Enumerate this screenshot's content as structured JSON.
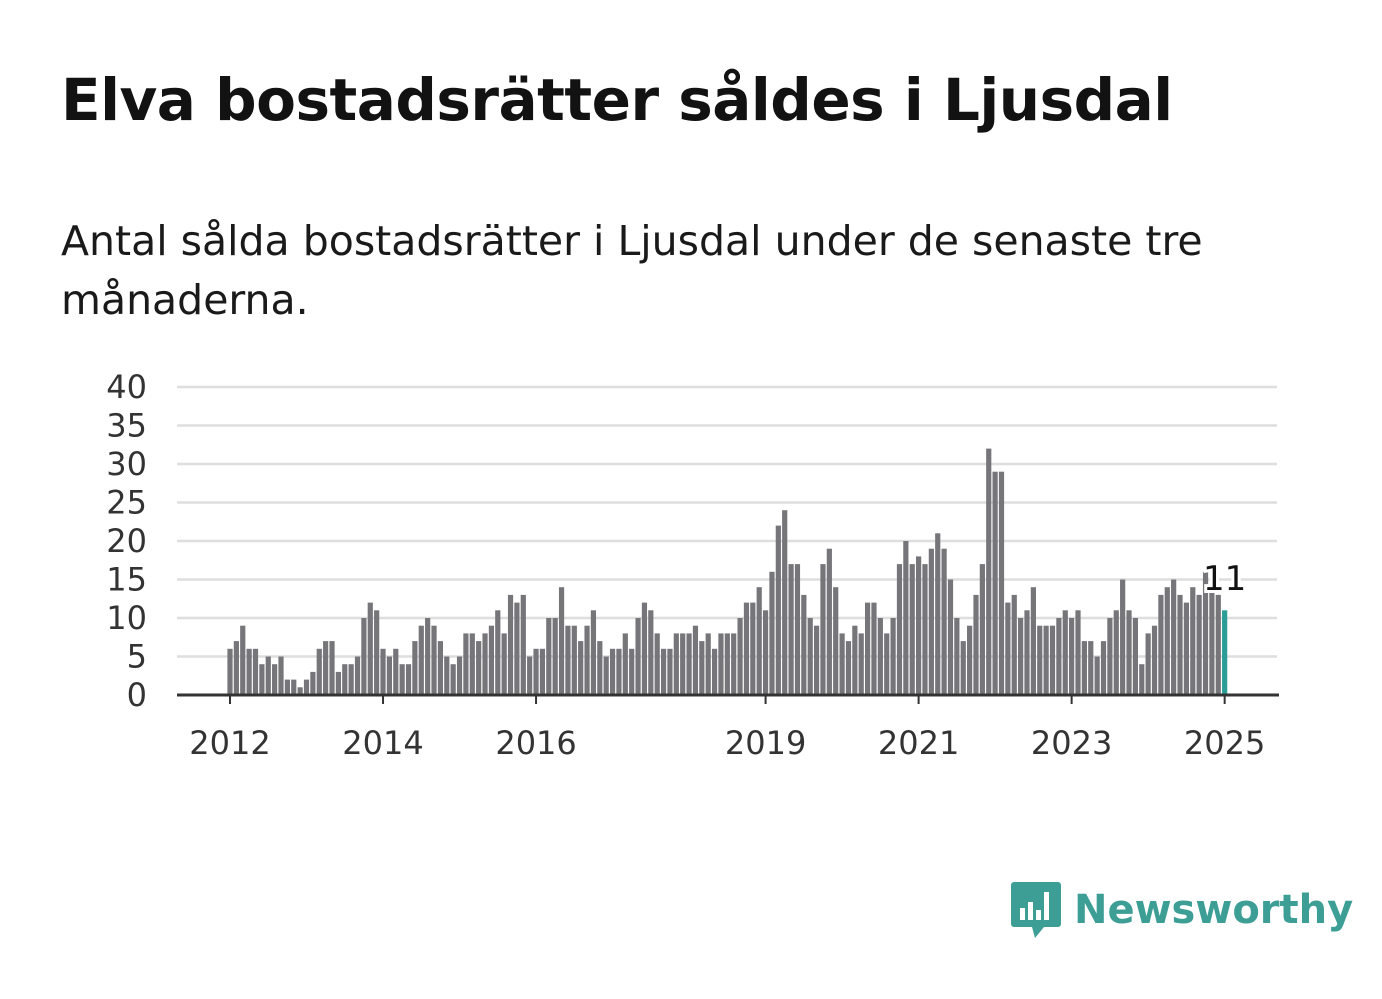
{
  "title": "Elva bostadsrätter såldes i Ljusdal",
  "subtitle": "Antal sålda bostadsrätter i Ljusdal under de senaste tre månaderna.",
  "brand": {
    "name": "Newsworthy",
    "icon": "newsworthy-logo-icon",
    "color": "#3d9e96"
  },
  "chart_data": {
    "type": "bar",
    "x_start": "2012-01",
    "x_end": "2025-01",
    "ylim": [
      0,
      40
    ],
    "y_ticks": [
      0,
      5,
      10,
      15,
      20,
      25,
      30,
      35,
      40
    ],
    "x_tick_labels": [
      {
        "year": 2012,
        "label": "2012"
      },
      {
        "year": 2014,
        "label": "2014"
      },
      {
        "year": 2016,
        "label": "2016"
      },
      {
        "year": 2019,
        "label": "2019"
      },
      {
        "year": 2021,
        "label": "2021"
      },
      {
        "year": 2023,
        "label": "2023"
      },
      {
        "year": 2025,
        "label": "2025"
      }
    ],
    "bar_color": "#76757a",
    "highlight_color": "#2a9d96",
    "grid": true,
    "values": [
      6,
      7,
      9,
      6,
      6,
      4,
      5,
      4,
      5,
      2,
      2,
      1,
      2,
      3,
      6,
      7,
      7,
      3,
      4,
      4,
      5,
      10,
      12,
      11,
      6,
      5,
      6,
      4,
      4,
      7,
      9,
      10,
      9,
      7,
      5,
      4,
      5,
      8,
      8,
      7,
      8,
      9,
      11,
      8,
      13,
      12,
      13,
      5,
      6,
      6,
      10,
      10,
      14,
      9,
      9,
      7,
      9,
      11,
      7,
      5,
      6,
      6,
      8,
      6,
      10,
      12,
      11,
      8,
      6,
      6,
      8,
      8,
      8,
      9,
      7,
      8,
      6,
      8,
      8,
      8,
      10,
      12,
      12,
      14,
      11,
      16,
      22,
      24,
      17,
      17,
      13,
      10,
      9,
      17,
      19,
      14,
      8,
      7,
      9,
      8,
      12,
      12,
      10,
      8,
      10,
      17,
      20,
      17,
      18,
      17,
      19,
      21,
      19,
      15,
      10,
      7,
      9,
      13,
      17,
      32,
      29,
      29,
      12,
      13,
      10,
      11,
      14,
      9,
      9,
      9,
      10,
      11,
      10,
      11,
      7,
      7,
      5,
      7,
      10,
      11,
      15,
      11,
      10,
      4,
      8,
      9,
      13,
      14,
      15,
      13,
      12,
      14,
      13,
      16,
      14,
      13,
      11
    ],
    "highlight_label": "11"
  }
}
